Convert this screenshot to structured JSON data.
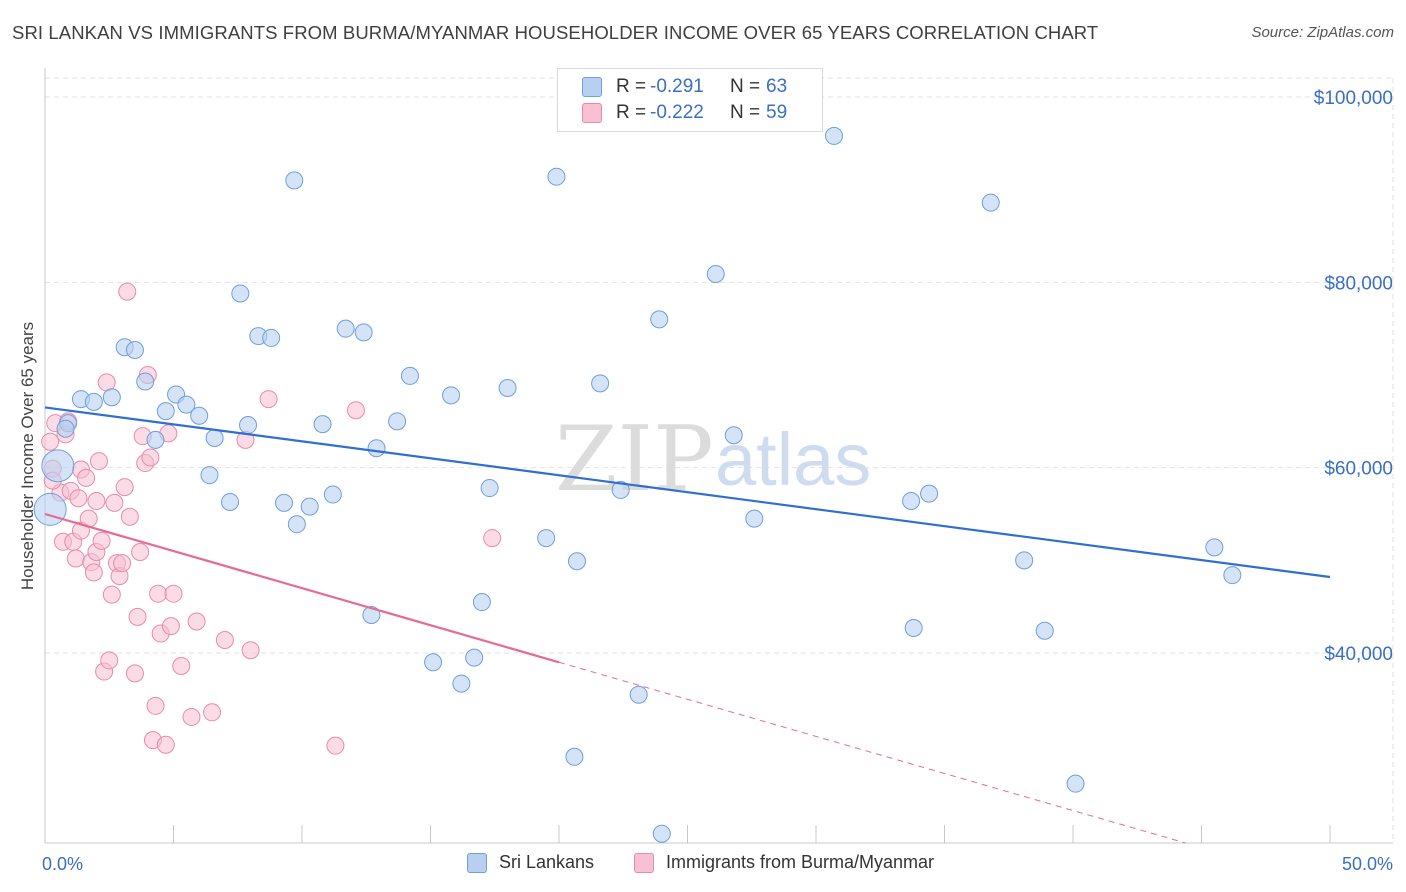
{
  "header": {
    "title": "SRI LANKAN VS IMMIGRANTS FROM BURMA/MYANMAR HOUSEHOLDER INCOME OVER 65 YEARS CORRELATION CHART",
    "source": "Source: ZipAtlas.com"
  },
  "watermark": {
    "part1": "ZIP",
    "part2": "atlas"
  },
  "legend": {
    "rows": [
      {
        "r_label": "R =",
        "r_value": "-0.291",
        "n_label": "N =",
        "n_value": "63"
      },
      {
        "r_label": "R =",
        "r_value": "-0.222",
        "n_label": "N =",
        "n_value": "59"
      }
    ]
  },
  "bottom_legend": {
    "series1": "Sri Lankans",
    "series2": "Immigrants from Burma/Myanmar"
  },
  "colors": {
    "blue_fill": "#b8d0f0",
    "blue_stroke": "#6f9fdc",
    "blue_line": "#2f6fd0",
    "pink_fill": "#f8c0d2",
    "pink_stroke": "#e98aab",
    "pink_line": "#e56a94",
    "axis_text": "#3a6fc4",
    "grid": "#e2e2e2"
  },
  "chart_data": {
    "type": "scatter",
    "title": "SRI LANKAN VS IMMIGRANTS FROM BURMA/MYANMAR HOUSEHOLDER INCOME OVER 65 YEARS CORRELATION CHART",
    "xlabel": "",
    "ylabel": "Householder Income Over 65 years",
    "xlim": [
      0,
      50
    ],
    "ylim": [
      20000,
      102000
    ],
    "x_tick_labels": [
      "0.0%",
      "50.0%"
    ],
    "y_ticks": [
      40000,
      60000,
      80000,
      100000
    ],
    "y_tick_labels": [
      "$40,000",
      "$60,000",
      "$80,000",
      "$100,000"
    ],
    "series": [
      {
        "name": "Sri Lankans",
        "r": -0.291,
        "n": 63,
        "trend": {
          "x": [
            0,
            50
          ],
          "y": [
            66500,
            48200
          ]
        },
        "points": [
          [
            0.2,
            55500
          ],
          [
            0.5,
            60200
          ],
          [
            0.9,
            64800
          ],
          [
            1.4,
            67400
          ],
          [
            1.9,
            67100
          ],
          [
            2.6,
            67600
          ],
          [
            3.1,
            73000
          ],
          [
            3.5,
            72700
          ],
          [
            3.9,
            69300
          ],
          [
            4.3,
            63000
          ],
          [
            4.7,
            66100
          ],
          [
            5.1,
            67900
          ],
          [
            5.5,
            66800
          ],
          [
            6.0,
            65600
          ],
          [
            6.4,
            59200
          ],
          [
            6.6,
            63200
          ],
          [
            7.2,
            56300
          ],
          [
            7.6,
            78800
          ],
          [
            7.9,
            64600
          ],
          [
            8.3,
            74200
          ],
          [
            8.8,
            74000
          ],
          [
            9.3,
            56200
          ],
          [
            9.7,
            91000
          ],
          [
            9.8,
            53900
          ],
          [
            10.3,
            55800
          ],
          [
            10.8,
            64700
          ],
          [
            11.2,
            57100
          ],
          [
            11.7,
            75000
          ],
          [
            12.4,
            74600
          ],
          [
            12.7,
            44100
          ],
          [
            12.9,
            62100
          ],
          [
            13.7,
            65000
          ],
          [
            14.2,
            69900
          ],
          [
            15.1,
            39000
          ],
          [
            15.8,
            67800
          ],
          [
            16.2,
            36700
          ],
          [
            16.7,
            39500
          ],
          [
            17.0,
            45500
          ],
          [
            17.3,
            57800
          ],
          [
            18.0,
            68600
          ],
          [
            19.5,
            52400
          ],
          [
            19.9,
            91400
          ],
          [
            20.6,
            28800
          ],
          [
            20.7,
            49900
          ],
          [
            21.6,
            69100
          ],
          [
            22.4,
            57600
          ],
          [
            23.1,
            35500
          ],
          [
            24.0,
            20500
          ],
          [
            23.9,
            76000
          ],
          [
            26.1,
            80900
          ],
          [
            26.8,
            63500
          ],
          [
            27.6,
            54500
          ],
          [
            30.7,
            95800
          ],
          [
            33.7,
            56400
          ],
          [
            33.8,
            42700
          ],
          [
            34.4,
            57200
          ],
          [
            36.8,
            88600
          ],
          [
            38.1,
            50000
          ],
          [
            38.9,
            42400
          ],
          [
            40.1,
            25900
          ],
          [
            45.5,
            51400
          ],
          [
            46.2,
            48400
          ],
          [
            0.8,
            64200
          ]
        ]
      },
      {
        "name": "Immigrants from Burma/Myanmar",
        "r": -0.222,
        "n": 59,
        "trend": {
          "x": [
            0,
            20
          ],
          "y": [
            55000,
            39000
          ]
        },
        "trend_dashed": {
          "x": [
            20,
            50
          ],
          "y": [
            39000,
            15000
          ]
        },
        "points": [
          [
            0.2,
            62800
          ],
          [
            0.3,
            59900
          ],
          [
            0.4,
            64800
          ],
          [
            0.6,
            57300
          ],
          [
            0.7,
            52000
          ],
          [
            0.8,
            63600
          ],
          [
            0.9,
            65000
          ],
          [
            1.0,
            57500
          ],
          [
            1.1,
            52000
          ],
          [
            1.2,
            50200
          ],
          [
            1.3,
            56700
          ],
          [
            1.4,
            59800
          ],
          [
            1.4,
            53200
          ],
          [
            1.6,
            58900
          ],
          [
            1.7,
            54500
          ],
          [
            1.8,
            49800
          ],
          [
            1.9,
            48700
          ],
          [
            2.0,
            56400
          ],
          [
            2.0,
            50900
          ],
          [
            2.1,
            60700
          ],
          [
            2.2,
            52100
          ],
          [
            2.3,
            38000
          ],
          [
            2.4,
            69200
          ],
          [
            2.5,
            39200
          ],
          [
            2.6,
            46300
          ],
          [
            2.7,
            56200
          ],
          [
            2.8,
            49700
          ],
          [
            2.9,
            48300
          ],
          [
            3.0,
            49700
          ],
          [
            3.1,
            57900
          ],
          [
            3.2,
            79000
          ],
          [
            3.3,
            54700
          ],
          [
            3.5,
            37800
          ],
          [
            3.6,
            43900
          ],
          [
            3.7,
            50900
          ],
          [
            3.8,
            63400
          ],
          [
            3.9,
            60500
          ],
          [
            4.0,
            70000
          ],
          [
            4.1,
            61100
          ],
          [
            4.2,
            30600
          ],
          [
            4.3,
            34300
          ],
          [
            4.4,
            46400
          ],
          [
            4.5,
            42100
          ],
          [
            4.7,
            30100
          ],
          [
            4.8,
            63700
          ],
          [
            4.9,
            42900
          ],
          [
            5.0,
            46400
          ],
          [
            5.3,
            38600
          ],
          [
            5.7,
            33100
          ],
          [
            5.9,
            43400
          ],
          [
            6.5,
            33600
          ],
          [
            7.0,
            41400
          ],
          [
            7.8,
            63000
          ],
          [
            8.0,
            40300
          ],
          [
            8.7,
            67400
          ],
          [
            11.3,
            30000
          ],
          [
            12.1,
            66200
          ],
          [
            17.4,
            52400
          ],
          [
            0.3,
            58600
          ]
        ]
      }
    ]
  }
}
